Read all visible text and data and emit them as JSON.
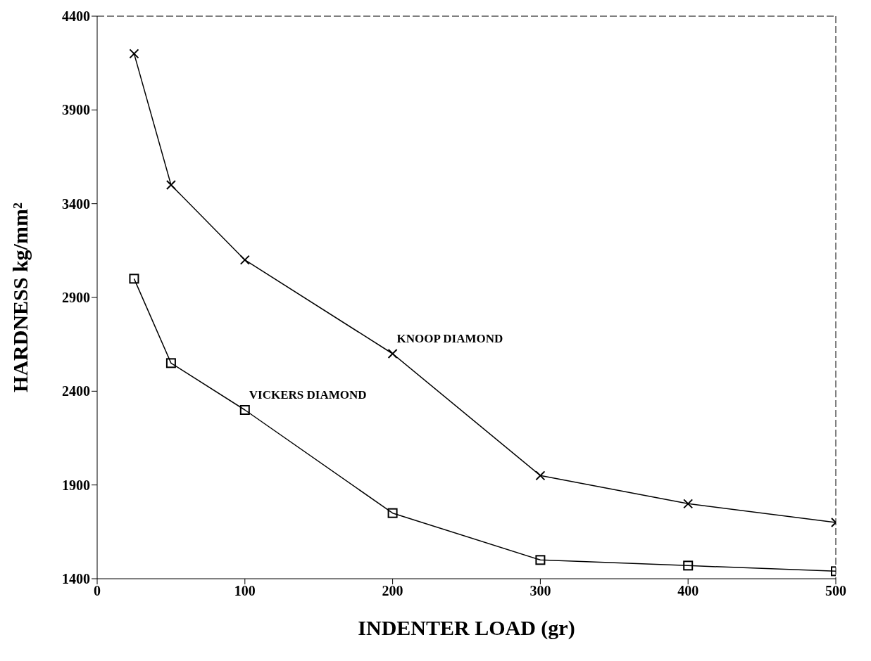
{
  "chart_data": {
    "type": "line",
    "xlabel": "INDENTER LOAD (gr)",
    "ylabel": "HARDNESS kg/mm²",
    "x": [
      25,
      50,
      100,
      200,
      300,
      400,
      500
    ],
    "series": [
      {
        "color": "#000000",
        "marker": "cross",
        "values": [
          4200,
          3500,
          3100,
          2600,
          1950,
          1800,
          1700
        ]
      },
      {
        "color": "#000000",
        "marker": "square",
        "values": [
          3000,
          2550,
          2300,
          1750,
          1500,
          1470,
          1440
        ]
      }
    ],
    "annotations": [
      {
        "text": "KNOOP DIAMOND",
        "x": 200,
        "y": 2600
      },
      {
        "text": "VICKERS DIAMOND",
        "x": 100,
        "y": 2300
      }
    ],
    "xlim": [
      0,
      500
    ],
    "xticks": [
      0,
      100,
      200,
      300,
      400,
      500
    ],
    "ylim": [
      1400,
      4400
    ],
    "yticks": [
      1400,
      1900,
      2400,
      2900,
      3400,
      3900,
      4400
    ],
    "grid": false,
    "line_style": "solid",
    "legend": false
  }
}
